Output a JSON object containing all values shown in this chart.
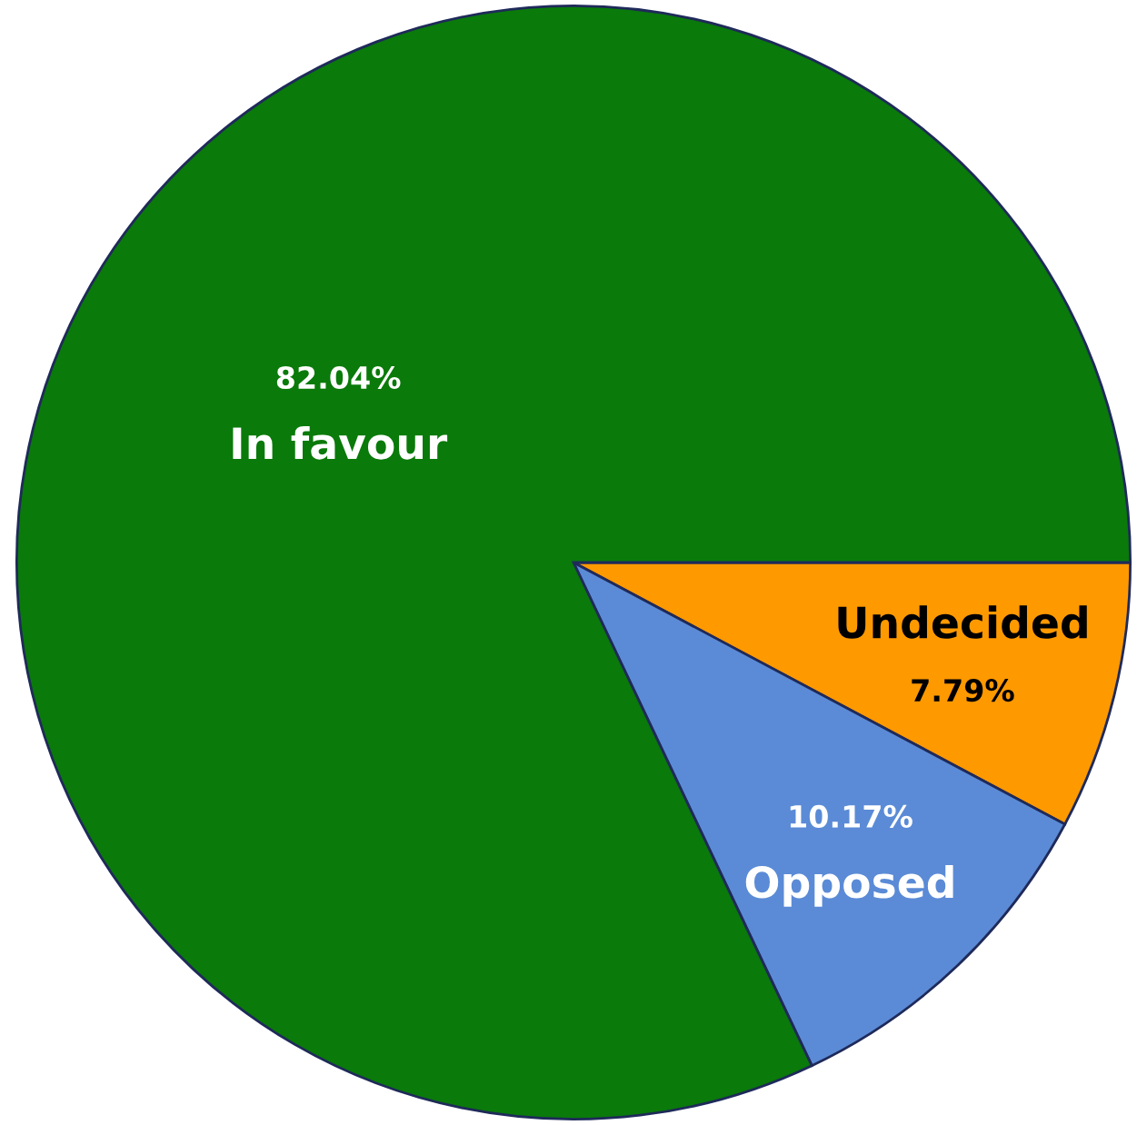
{
  "chart_data": {
    "type": "pie",
    "categories": [
      "Undecided",
      "Opposed",
      "In favour"
    ],
    "values": [
      7.79,
      10.17,
      82.04
    ],
    "colors": [
      "#ff9900",
      "#5b8bd6",
      "#0a7a0a"
    ],
    "value_labels": [
      "7.79%",
      "10.17%",
      "82.04%"
    ]
  }
}
